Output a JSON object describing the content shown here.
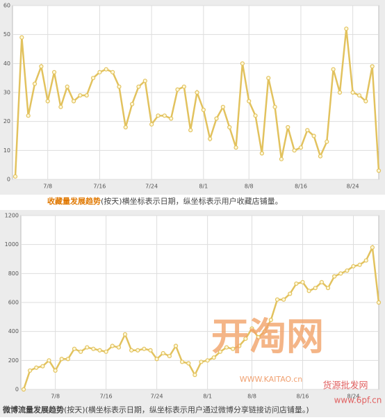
{
  "chart_data": [
    {
      "type": "line",
      "caption_title": "收藏量发展趋势",
      "caption_text": "(按天)横坐标表示日期，纵坐标表示用户收藏店铺量。",
      "categories": [
        null,
        null,
        null,
        null,
        null,
        "7/8",
        null,
        null,
        null,
        null,
        null,
        null,
        null,
        "7/16",
        null,
        null,
        null,
        null,
        null,
        null,
        null,
        "7/24",
        null,
        null,
        null,
        null,
        null,
        null,
        null,
        "8/1",
        null,
        null,
        null,
        null,
        null,
        null,
        "8/8",
        null,
        null,
        null,
        null,
        null,
        null,
        null,
        "8/16",
        null,
        null,
        null,
        null,
        null,
        null,
        null,
        "8/24",
        null,
        null,
        null,
        null
      ],
      "series": [
        {
          "color": "#e2c25e",
          "values": [
            1,
            49,
            22,
            33,
            39,
            27,
            37,
            25,
            32,
            27,
            29,
            29,
            35,
            37,
            38,
            37,
            32,
            18,
            26,
            32,
            34,
            19,
            22,
            22,
            21,
            31,
            32,
            17,
            30,
            24,
            14,
            21,
            25,
            18,
            11,
            40,
            27,
            22,
            9,
            35,
            25,
            7,
            18,
            10,
            11,
            17,
            15,
            8,
            13,
            38,
            30,
            52,
            30,
            29,
            27,
            39,
            3
          ]
        }
      ],
      "ylim": [
        0,
        60
      ],
      "yticks": [
        0,
        10,
        20,
        30,
        40,
        50,
        60
      ],
      "grid": true
    },
    {
      "type": "line",
      "caption_title": "微博流量发展趋势",
      "caption_text": "(按天)(横坐标表示日期，纵坐标表示用户通过微博分享链接访问店铺量。)",
      "categories": [
        null,
        null,
        null,
        null,
        null,
        "7/8",
        null,
        null,
        null,
        null,
        null,
        null,
        null,
        "7/16",
        null,
        null,
        null,
        null,
        null,
        null,
        null,
        "7/24",
        null,
        null,
        null,
        null,
        null,
        null,
        null,
        "8/1",
        null,
        null,
        null,
        null,
        null,
        null,
        "8/8",
        null,
        null,
        null,
        null,
        null,
        null,
        null,
        "8/16",
        null,
        null,
        null,
        null,
        null,
        null,
        null,
        "8/24",
        null,
        null,
        null,
        null
      ],
      "series": [
        {
          "color": "#e2c25e",
          "values": [
            0,
            130,
            150,
            160,
            200,
            130,
            210,
            210,
            280,
            260,
            290,
            280,
            270,
            260,
            300,
            290,
            380,
            270,
            270,
            280,
            270,
            210,
            250,
            230,
            300,
            190,
            180,
            100,
            190,
            200,
            220,
            260,
            290,
            280,
            300,
            350,
            420,
            360,
            400,
            480,
            620,
            620,
            660,
            730,
            740,
            680,
            700,
            740,
            700,
            780,
            800,
            820,
            850,
            860,
            890,
            980,
            600
          ]
        }
      ],
      "ylim": [
        0,
        1200
      ],
      "yticks": [
        0,
        200,
        400,
        600,
        800,
        1000,
        1200
      ],
      "grid": true
    }
  ],
  "watermark": {
    "logo": "开淘网",
    "site": "WWW.KAITAO.cn",
    "tagline": "货源批发网",
    "domain": "www.6pf.cn"
  }
}
